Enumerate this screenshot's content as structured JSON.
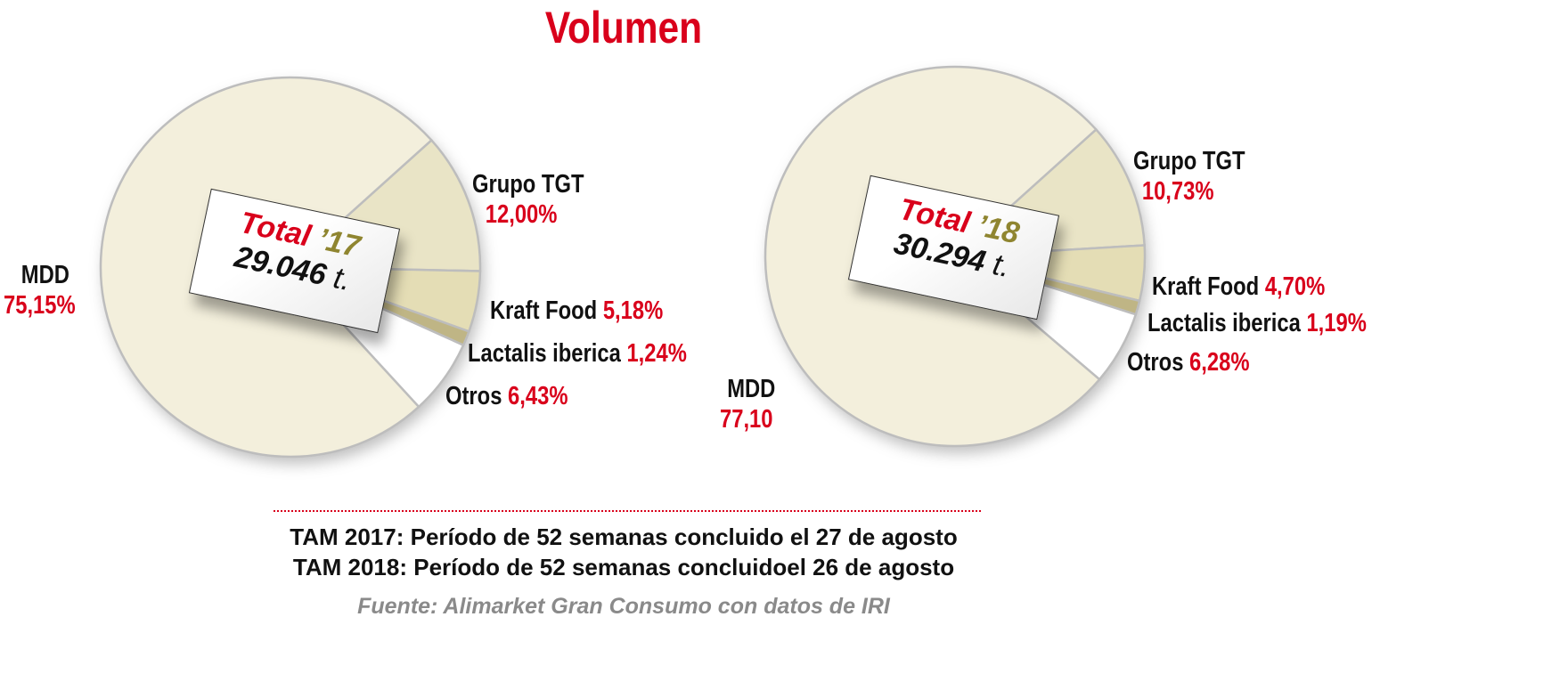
{
  "title": "Volumen",
  "chart_data": [
    {
      "type": "pie",
      "title": "Total '17",
      "total_label": "Total",
      "year_label": "’17",
      "total_value": "29.046",
      "total_unit": "t.",
      "slices": [
        {
          "name": "Grupo TGT",
          "value": 12.0,
          "label": "12,00%",
          "color": "#e9e4c6"
        },
        {
          "name": "Kraft Food",
          "value": 5.18,
          "label": "5,18%",
          "color": "#e4ddb5"
        },
        {
          "name": "Lactalis iberica",
          "value": 1.24,
          "label": "1,24%",
          "color": "#bfb585"
        },
        {
          "name": "Otros",
          "value": 6.43,
          "label": "6,43%",
          "color": "#ffffff"
        },
        {
          "name": "MDD",
          "value": 75.15,
          "label": "75,15%",
          "color": "#f3efdc"
        }
      ]
    },
    {
      "type": "pie",
      "title": "Total '18",
      "total_label": "Total",
      "year_label": "’18",
      "total_value": "30.294",
      "total_unit": "t.",
      "slices": [
        {
          "name": "Grupo TGT",
          "value": 10.73,
          "label": "10,73%",
          "color": "#e9e4c6"
        },
        {
          "name": "Kraft Food",
          "value": 4.7,
          "label": "4,70%",
          "color": "#e4ddb5"
        },
        {
          "name": "Lactalis iberica",
          "value": 1.19,
          "label": "1,19%",
          "color": "#bfb585"
        },
        {
          "name": "Otros",
          "value": 6.28,
          "label": "6,28%",
          "color": "#ffffff"
        },
        {
          "name": "MDD",
          "value": 77.1,
          "label": "77,10",
          "color": "#f3efdc"
        }
      ]
    }
  ],
  "notes": [
    "TAM 2017: Período de 52 semanas concluido el 27 de agosto",
    "TAM 2018: Período de 52 semanas concluidoel 26 de agosto"
  ],
  "source": "Fuente: Alimarket Gran Consumo con datos de IRI"
}
